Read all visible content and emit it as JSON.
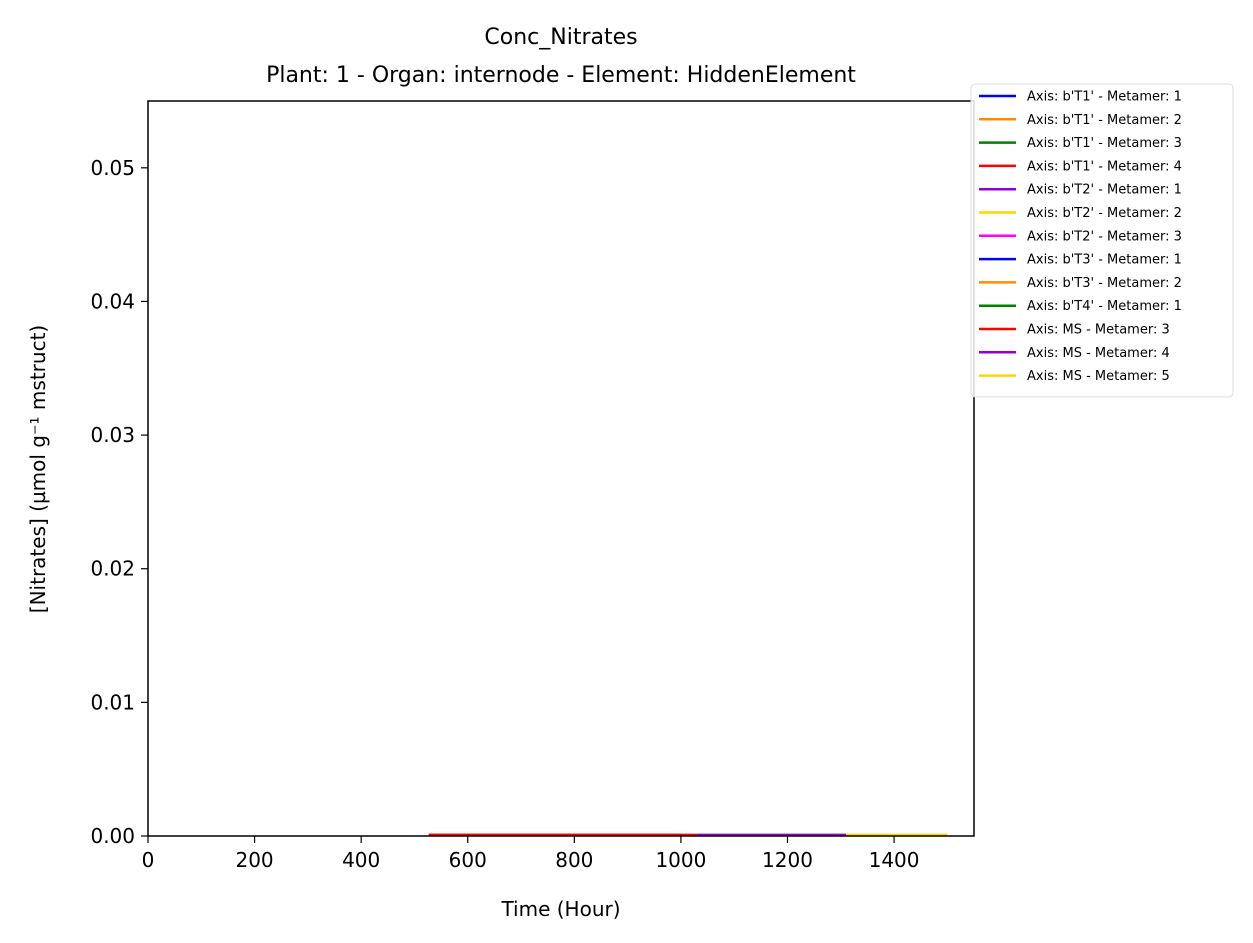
{
  "chart_data": {
    "type": "line",
    "title": "Conc_Nitrates",
    "subtitle": "Plant: 1 - Organ: internode - Element: HiddenElement",
    "xlabel": "Time (Hour)",
    "ylabel": "[Nitrates] (µmol g⁻¹ mstruct)",
    "xlim": [
      0,
      1550
    ],
    "ylim": [
      0,
      0.055
    ],
    "xticks": [
      0,
      200,
      400,
      600,
      800,
      1000,
      1200,
      1400
    ],
    "yticks": [
      0.0,
      0.01,
      0.02,
      0.03,
      0.04,
      0.05
    ],
    "ytick_labels": [
      "0.00",
      "0.01",
      "0.02",
      "0.03",
      "0.04",
      "0.05"
    ],
    "grid": false,
    "legend_position": "outside-right-top",
    "series": [
      {
        "name": "Axis: b'T1' - Metamer: 1",
        "color": "#0000ff",
        "x": [],
        "y": []
      },
      {
        "name": "Axis: b'T1' - Metamer: 2",
        "color": "#ff8c00",
        "x": [],
        "y": []
      },
      {
        "name": "Axis: b'T1' - Metamer: 3",
        "color": "#008000",
        "x": [],
        "y": []
      },
      {
        "name": "Axis: b'T1' - Metamer: 4",
        "color": "#ff0000",
        "x": [
          527,
          1000
        ],
        "y": [
          0.0001,
          0.0001
        ]
      },
      {
        "name": "Axis: b'T2' - Metamer: 1",
        "color": "#9400d3",
        "x": [],
        "y": []
      },
      {
        "name": "Axis: b'T2' - Metamer: 2",
        "color": "#ffd700",
        "x": [],
        "y": []
      },
      {
        "name": "Axis: b'T2' - Metamer: 3",
        "color": "#ff00ff",
        "x": [],
        "y": []
      },
      {
        "name": "Axis: b'T3' - Metamer: 1",
        "color": "#0000ff",
        "x": [],
        "y": []
      },
      {
        "name": "Axis: b'T3' - Metamer: 2",
        "color": "#ff8c00",
        "x": [],
        "y": []
      },
      {
        "name": "Axis: b'T4' - Metamer: 1",
        "color": "#008000",
        "x": [],
        "y": []
      },
      {
        "name": "Axis: MS - Metamer: 3",
        "color": "#ff0000",
        "x": [
          527,
          1030
        ],
        "y": [
          0.0001,
          0.0001
        ]
      },
      {
        "name": "Axis: MS - Metamer: 4",
        "color": "#9400d3",
        "x": [
          1030,
          1310
        ],
        "y": [
          0.0001,
          0.0001
        ]
      },
      {
        "name": "Axis: MS - Metamer: 5",
        "color": "#ffd700",
        "x": [
          1310,
          1500
        ],
        "y": [
          0.0001,
          0.0001
        ]
      }
    ]
  }
}
